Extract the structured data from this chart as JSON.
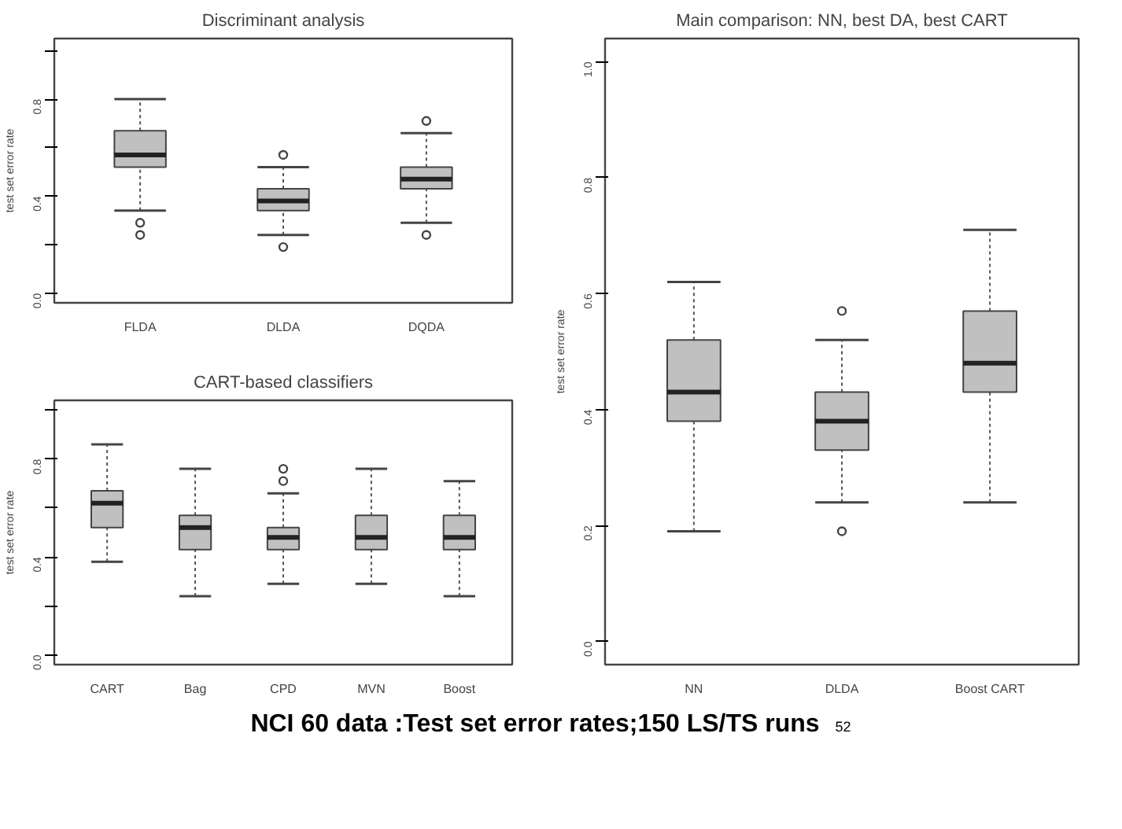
{
  "chart_data": [
    {
      "type": "box",
      "title": "Discriminant analysis",
      "ylabel": "test set error rate",
      "categories": [
        "FLDA",
        "DLDA",
        "DQDA"
      ],
      "color": "#c0c0c0",
      "ylim": [
        -0.04,
        1.05
      ],
      "yticks": [
        {
          "value": 0,
          "label": "0.0"
        },
        {
          "value": 0.2,
          "label": null
        },
        {
          "value": 0.4,
          "label": "0.4"
        },
        {
          "value": 0.6,
          "label": null
        },
        {
          "value": 0.8,
          "label": "0.8"
        },
        {
          "value": 1.0,
          "label": null
        }
      ],
      "boxes": [
        {
          "low": 0.34,
          "q1": 0.52,
          "median": 0.57,
          "q3": 0.67,
          "high": 0.8,
          "outliers": [
            0.29,
            0.24
          ]
        },
        {
          "low": 0.24,
          "q1": 0.34,
          "median": 0.38,
          "q3": 0.43,
          "high": 0.52,
          "outliers": [
            0.57,
            0.19
          ]
        },
        {
          "low": 0.29,
          "q1": 0.43,
          "median": 0.47,
          "q3": 0.52,
          "high": 0.66,
          "outliers": [
            0.71,
            0.24
          ]
        }
      ]
    },
    {
      "type": "box",
      "title": "CART-based classifiers",
      "ylabel": "test set error rate",
      "categories": [
        "CART",
        "Bag",
        "CPD",
        "MVN",
        "Boost"
      ],
      "color": "#c0c0c0",
      "ylim": [
        -0.04,
        1.04
      ],
      "yticks": [
        {
          "value": 0,
          "label": "0.0"
        },
        {
          "value": 0.2,
          "label": null
        },
        {
          "value": 0.4,
          "label": "0.4"
        },
        {
          "value": 0.6,
          "label": null
        },
        {
          "value": 0.8,
          "label": "0.8"
        },
        {
          "value": 1.0,
          "label": null
        }
      ],
      "boxes": [
        {
          "low": 0.38,
          "q1": 0.52,
          "median": 0.62,
          "q3": 0.67,
          "high": 0.86
        },
        {
          "low": 0.24,
          "q1": 0.43,
          "median": 0.52,
          "q3": 0.57,
          "high": 0.76
        },
        {
          "low": 0.29,
          "q1": 0.43,
          "median": 0.48,
          "q3": 0.52,
          "high": 0.66,
          "outliers": [
            0.76,
            0.71
          ]
        },
        {
          "low": 0.29,
          "q1": 0.43,
          "median": 0.48,
          "q3": 0.57,
          "high": 0.76
        },
        {
          "low": 0.24,
          "q1": 0.43,
          "median": 0.48,
          "q3": 0.57,
          "high": 0.71
        }
      ]
    },
    {
      "type": "box",
      "title": "Main comparison: NN, best DA, best CART",
      "ylabel": "test set error rate",
      "categories": [
        "NN",
        "DLDA",
        "Boost CART"
      ],
      "color": "#c0c0c0",
      "ylim": [
        -0.04,
        1.04
      ],
      "yticks": [
        {
          "value": 0,
          "label": "0.0"
        },
        {
          "value": 0.2,
          "label": "0.2"
        },
        {
          "value": 0.4,
          "label": "0.4"
        },
        {
          "value": 0.6,
          "label": "0.6"
        },
        {
          "value": 0.8,
          "label": "0.8"
        },
        {
          "value": 1.0,
          "label": "1.0"
        }
      ],
      "boxes": [
        {
          "low": 0.19,
          "q1": 0.38,
          "median": 0.43,
          "q3": 0.52,
          "high": 0.62
        },
        {
          "low": 0.24,
          "q1": 0.33,
          "median": 0.38,
          "q3": 0.43,
          "high": 0.52,
          "outliers": [
            0.57,
            0.19
          ]
        },
        {
          "low": 0.24,
          "q1": 0.43,
          "median": 0.48,
          "q3": 0.57,
          "high": 0.71
        }
      ],
      "annotations": [
        "NCI 60 data :Test set error rates;150 LS/TS runs",
        "52"
      ]
    }
  ]
}
